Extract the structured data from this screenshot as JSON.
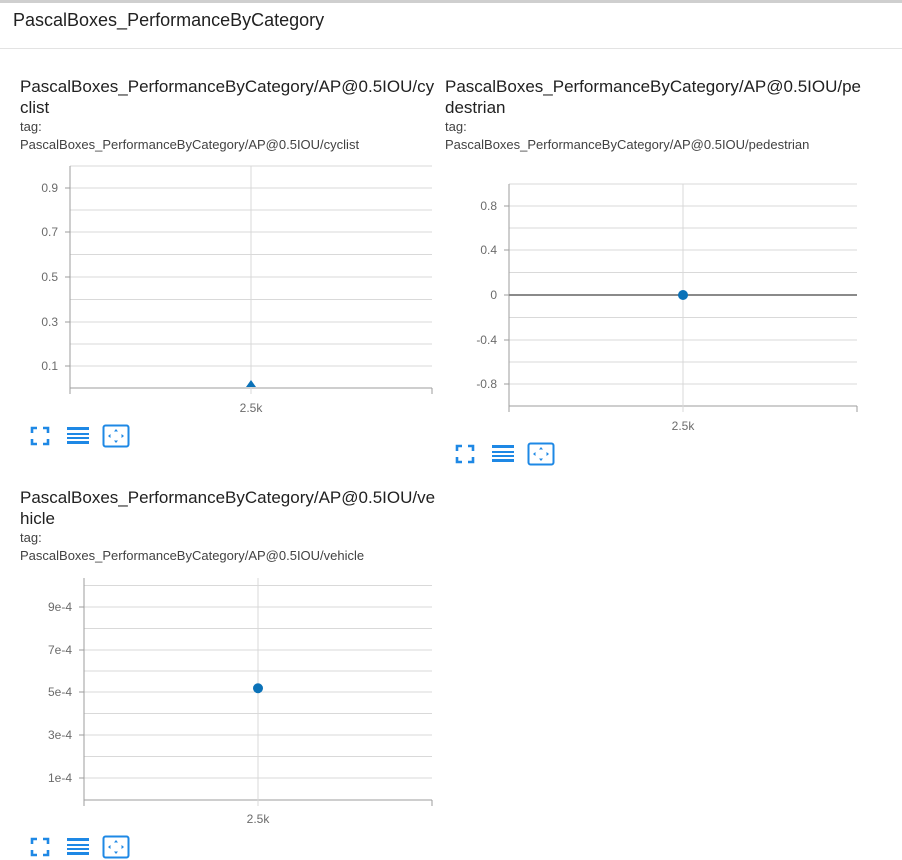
{
  "header": {
    "title": "PascalBoxes_PerformanceByCategory"
  },
  "colors": {
    "accent": "#1e88e5",
    "point": "#0b72b8",
    "grid": "#d9d9d9",
    "axis": "#9e9e9e"
  },
  "cards": [
    {
      "title": "PascalBoxes_PerformanceByCategory/AP@0.5IOU/cyclist",
      "tag_label": "tag:",
      "tag_value": "PascalBoxes_PerformanceByCategory/AP@0.5IOU/cyclist",
      "chart_data": {
        "type": "scatter",
        "x": [
          2500
        ],
        "y": [
          0
        ],
        "marker": "triangle",
        "xlim": [
          0,
          5000
        ],
        "ylim": [
          0,
          1.0
        ],
        "xticks": [
          "2.5k"
        ],
        "yticks": [
          "0.9",
          "0.7",
          "0.5",
          "0.3",
          "0.1"
        ],
        "grid": true
      }
    },
    {
      "title": "PascalBoxes_PerformanceByCategory/AP@0.5IOU/pedestrian",
      "tag_label": "tag:",
      "tag_value": "PascalBoxes_PerformanceByCategory/AP@0.5IOU/pedestrian",
      "chart_data": {
        "type": "scatter",
        "x": [
          2500
        ],
        "y": [
          0
        ],
        "marker": "circle",
        "xlim": [
          0,
          5000
        ],
        "ylim": [
          -1.0,
          1.0
        ],
        "xticks": [
          "2.5k"
        ],
        "yticks": [
          "0.8",
          "0.4",
          "0",
          "-0.4",
          "-0.8"
        ],
        "grid": true
      }
    },
    {
      "title": "PascalBoxes_PerformanceByCategory/AP@0.5IOU/vehicle",
      "tag_label": "tag:",
      "tag_value": "PascalBoxes_PerformanceByCategory/AP@0.5IOU/vehicle",
      "chart_data": {
        "type": "scatter",
        "x": [
          2500
        ],
        "y": [
          0.00052
        ],
        "marker": "circle",
        "xlim": [
          0,
          5000
        ],
        "ylim": [
          0,
          0.001
        ],
        "xticks": [
          "2.5k"
        ],
        "yticks": [
          "9e-4",
          "7e-4",
          "5e-4",
          "3e-4",
          "1e-4"
        ],
        "grid": true
      }
    }
  ],
  "toolbar_icons": [
    "fullscreen-icon",
    "data-table-icon",
    "fit-domain-icon"
  ]
}
